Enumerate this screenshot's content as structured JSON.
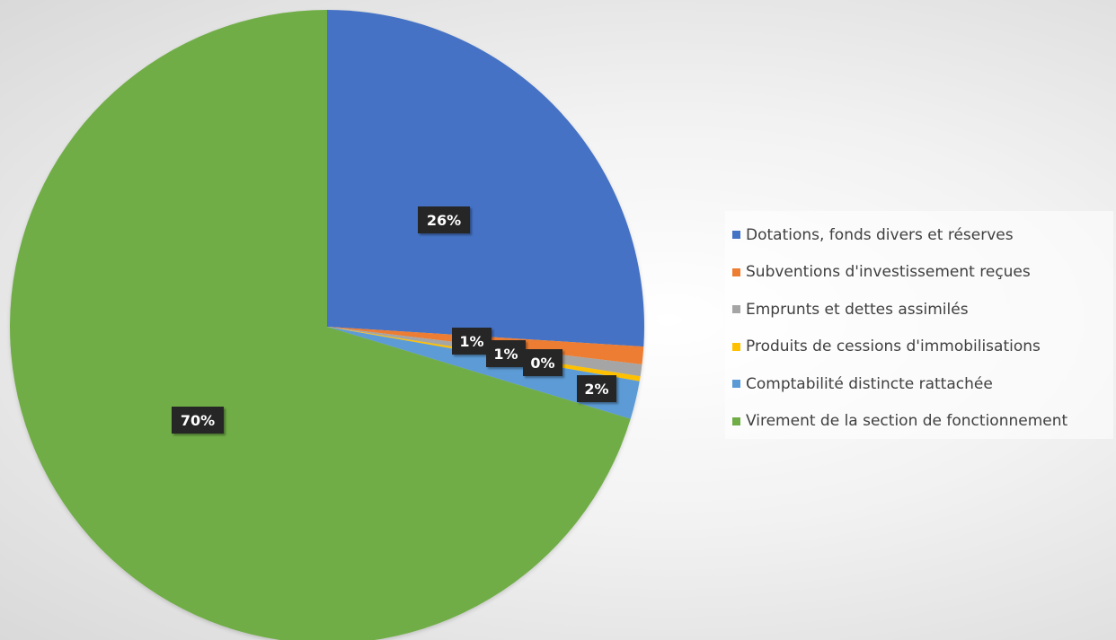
{
  "chart_data": {
    "type": "pie",
    "title": "",
    "start_angle_deg": 0,
    "direction": "clockwise",
    "legend_position": "right",
    "categories": [
      "Dotations, fonds divers et réserves",
      "Subventions d'investissement reçues",
      "Emprunts et dettes assimilés",
      "Produits de cessions d'immobilisations",
      "Comptabilité distincte rattachée",
      "Virement de la section de fonctionnement"
    ],
    "values": [
      26.0,
      0.9,
      0.6,
      0.25,
      1.95,
      70.3
    ],
    "data_labels": [
      "26%",
      "1%",
      "1%",
      "0%",
      "2%",
      "70%"
    ],
    "colors": [
      "#4472C4",
      "#ED7D31",
      "#A5A5A5",
      "#FFC000",
      "#5B9BD5",
      "#70AD47"
    ]
  }
}
